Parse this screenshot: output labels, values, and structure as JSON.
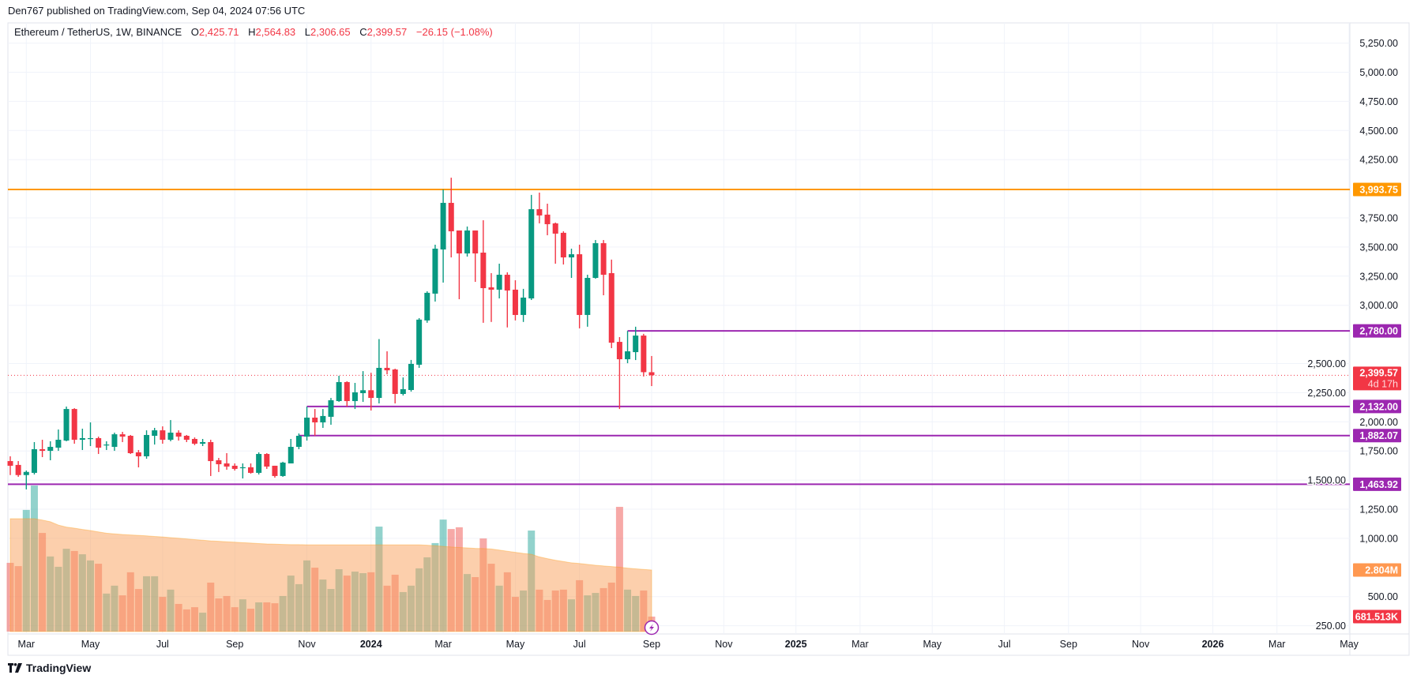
{
  "header": {
    "published": "Den767 published on TradingView.com, Sep 04, 2024 07:56 UTC"
  },
  "legend": {
    "symbol": "Ethereum / TetherUS, 1W, BINANCE",
    "o_label": "O",
    "o": "2,425.71",
    "h_label": "H",
    "h": "2,564.83",
    "l_label": "L",
    "l": "2,306.65",
    "c_label": "C",
    "c": "2,399.57",
    "change": "−26.15 (−1.08%)"
  },
  "colors": {
    "up": "#089981",
    "down": "#f23645",
    "orange": "#ff9800",
    "purple": "#9c27b0",
    "grid": "#f0f3fa"
  },
  "price_axis": {
    "ticks": [
      {
        "value": 5250,
        "label": "5,250.00"
      },
      {
        "value": 5000,
        "label": "5,000.00"
      },
      {
        "value": 4750,
        "label": "4,750.00"
      },
      {
        "value": 4500,
        "label": "4,500.00"
      },
      {
        "value": 4250,
        "label": "4,250.00"
      },
      {
        "value": 3750,
        "label": "3,750.00"
      },
      {
        "value": 3500,
        "label": "3,500.00"
      },
      {
        "value": 3250,
        "label": "3,250.00"
      },
      {
        "value": 3000,
        "label": "3,000.00"
      },
      {
        "value": 2500,
        "label": "2,500.00"
      },
      {
        "value": 2250,
        "label": "2,250.00"
      },
      {
        "value": 2000,
        "label": "2,000.00"
      },
      {
        "value": 1750,
        "label": "1,750.00"
      },
      {
        "value": 1500,
        "label": "1,500.00"
      },
      {
        "value": 1250,
        "label": "1,250.00"
      },
      {
        "value": 1000,
        "label": "1,000.00"
      },
      {
        "value": 500,
        "label": "500.00"
      },
      {
        "value": 250,
        "label": "250.00"
      }
    ]
  },
  "horizontal_lines": [
    {
      "price": 3993.75,
      "label": "3,993.75",
      "color": "#ff9800",
      "from": "start"
    },
    {
      "price": 2780.0,
      "label": "2,780.00",
      "color": "#9c27b0",
      "from": "2024-08-12"
    },
    {
      "price": 2132.0,
      "label": "2,132.00",
      "color": "#9c27b0",
      "from": "2023-11-06"
    },
    {
      "price": 1882.07,
      "label": "1,882.07",
      "color": "#9c27b0",
      "from": "2023-10-30"
    },
    {
      "price": 1463.92,
      "label": "1,463.92",
      "color": "#9c27b0",
      "from": "start"
    }
  ],
  "current_price": {
    "price": 2399.57,
    "label": "2,399.57",
    "countdown": "4d 17h",
    "color": "#f23645"
  },
  "volume": {
    "ma_label": "2.804M",
    "ma_value": 2.804,
    "last_label": "681.513K",
    "last_value": 0.681513
  },
  "time_axis": {
    "labels": [
      {
        "text": "Mar",
        "month": "2023-03"
      },
      {
        "text": "May",
        "month": "2023-05"
      },
      {
        "text": "Jul",
        "month": "2023-07"
      },
      {
        "text": "Sep",
        "month": "2023-09"
      },
      {
        "text": "Nov",
        "month": "2023-11"
      },
      {
        "text": "2024",
        "month": "2024-01"
      },
      {
        "text": "Mar",
        "month": "2024-03"
      },
      {
        "text": "May",
        "month": "2024-05"
      },
      {
        "text": "Jul",
        "month": "2024-07"
      },
      {
        "text": "Sep",
        "month": "2024-09"
      },
      {
        "text": "Nov",
        "month": "2024-11"
      },
      {
        "text": "2025",
        "month": "2025-01"
      },
      {
        "text": "Mar",
        "month": "2025-03"
      },
      {
        "text": "May",
        "month": "2025-05"
      },
      {
        "text": "Jul",
        "month": "2025-07"
      },
      {
        "text": "Sep",
        "month": "2025-09"
      },
      {
        "text": "Nov",
        "month": "2025-11"
      },
      {
        "text": "2026",
        "month": "2026-01"
      },
      {
        "text": "Mar",
        "month": "2026-03"
      },
      {
        "text": "May",
        "month": "2026-05"
      }
    ]
  },
  "footer": {
    "logo": "TradingView"
  },
  "chart_data": {
    "type": "candlestick",
    "interval": "1W",
    "y_scale": "linear",
    "ylim": [
      250,
      5250
    ],
    "grid": true,
    "volume_unit": "M",
    "candles": [
      {
        "d": "2023-02-20",
        "o": 1663,
        "h": 1704,
        "l": 1543,
        "c": 1623,
        "v": 3.13
      },
      {
        "d": "2023-02-27",
        "o": 1630,
        "h": 1663,
        "l": 1528,
        "c": 1543,
        "v": 2.98
      },
      {
        "d": "2023-03-06",
        "o": 1543,
        "h": 1582,
        "l": 1420,
        "c": 1570,
        "v": 5.54
      },
      {
        "d": "2023-03-13",
        "o": 1562,
        "h": 1826,
        "l": 1548,
        "c": 1765,
        "v": 6.65
      },
      {
        "d": "2023-03-20",
        "o": 1765,
        "h": 1846,
        "l": 1697,
        "c": 1751,
        "v": 4.49
      },
      {
        "d": "2023-03-27",
        "o": 1751,
        "h": 1833,
        "l": 1670,
        "c": 1785,
        "v": 3.42
      },
      {
        "d": "2023-04-03",
        "o": 1778,
        "h": 1934,
        "l": 1751,
        "c": 1846,
        "v": 2.95
      },
      {
        "d": "2023-04-10",
        "o": 1839,
        "h": 2131,
        "l": 1833,
        "c": 2110,
        "v": 3.77
      },
      {
        "d": "2023-04-17",
        "o": 2110,
        "h": 2117,
        "l": 1812,
        "c": 1846,
        "v": 3.67
      },
      {
        "d": "2023-04-24",
        "o": 1846,
        "h": 1941,
        "l": 1758,
        "c": 1860,
        "v": 3.52
      },
      {
        "d": "2023-05-01",
        "o": 1853,
        "h": 1995,
        "l": 1792,
        "c": 1860,
        "v": 3.24
      },
      {
        "d": "2023-05-08",
        "o": 1860,
        "h": 1873,
        "l": 1724,
        "c": 1778,
        "v": 3.09
      },
      {
        "d": "2023-05-15",
        "o": 1800,
        "h": 1833,
        "l": 1758,
        "c": 1805,
        "v": 1.73
      },
      {
        "d": "2023-05-22",
        "o": 1785,
        "h": 1907,
        "l": 1751,
        "c": 1893,
        "v": 2.09
      },
      {
        "d": "2023-05-29",
        "o": 1893,
        "h": 1914,
        "l": 1826,
        "c": 1873,
        "v": 1.65
      },
      {
        "d": "2023-06-05",
        "o": 1880,
        "h": 1887,
        "l": 1724,
        "c": 1731,
        "v": 2.7
      },
      {
        "d": "2023-06-12",
        "o": 1738,
        "h": 1758,
        "l": 1609,
        "c": 1704,
        "v": 1.94
      },
      {
        "d": "2023-06-19",
        "o": 1704,
        "h": 1927,
        "l": 1683,
        "c": 1887,
        "v": 2.52
      },
      {
        "d": "2023-06-26",
        "o": 1880,
        "h": 1948,
        "l": 1805,
        "c": 1927,
        "v": 2.52
      },
      {
        "d": "2023-07-03",
        "o": 1927,
        "h": 1961,
        "l": 1812,
        "c": 1846,
        "v": 1.58
      },
      {
        "d": "2023-07-10",
        "o": 1846,
        "h": 2015,
        "l": 1833,
        "c": 1907,
        "v": 1.91
      },
      {
        "d": "2023-07-17",
        "o": 1907,
        "h": 1927,
        "l": 1839,
        "c": 1873,
        "v": 1.26
      },
      {
        "d": "2023-07-24",
        "o": 1880,
        "h": 1887,
        "l": 1826,
        "c": 1846,
        "v": 1.01
      },
      {
        "d": "2023-07-31",
        "o": 1853,
        "h": 1866,
        "l": 1800,
        "c": 1812,
        "v": 1.11
      },
      {
        "d": "2023-08-07",
        "o": 1812,
        "h": 1853,
        "l": 1792,
        "c": 1826,
        "v": 0.86
      },
      {
        "d": "2023-08-14",
        "o": 1826,
        "h": 1846,
        "l": 1535,
        "c": 1663,
        "v": 2.23
      },
      {
        "d": "2023-08-21",
        "o": 1670,
        "h": 1690,
        "l": 1569,
        "c": 1636,
        "v": 1.51
      },
      {
        "d": "2023-08-28",
        "o": 1643,
        "h": 1731,
        "l": 1589,
        "c": 1616,
        "v": 1.62
      },
      {
        "d": "2023-09-04",
        "o": 1623,
        "h": 1643,
        "l": 1582,
        "c": 1596,
        "v": 1.11
      },
      {
        "d": "2023-09-11",
        "o": 1603,
        "h": 1643,
        "l": 1514,
        "c": 1610,
        "v": 1.47
      },
      {
        "d": "2023-09-18",
        "o": 1610,
        "h": 1643,
        "l": 1555,
        "c": 1562,
        "v": 1.04
      },
      {
        "d": "2023-09-25",
        "o": 1562,
        "h": 1738,
        "l": 1548,
        "c": 1724,
        "v": 1.33
      },
      {
        "d": "2023-10-02",
        "o": 1724,
        "h": 1731,
        "l": 1596,
        "c": 1616,
        "v": 1.33
      },
      {
        "d": "2023-10-09",
        "o": 1623,
        "h": 1623,
        "l": 1521,
        "c": 1535,
        "v": 1.29
      },
      {
        "d": "2023-10-16",
        "o": 1535,
        "h": 1657,
        "l": 1528,
        "c": 1650,
        "v": 1.62
      },
      {
        "d": "2023-10-23",
        "o": 1643,
        "h": 1853,
        "l": 1643,
        "c": 1785,
        "v": 2.55
      },
      {
        "d": "2023-10-30",
        "o": 1785,
        "h": 1900,
        "l": 1765,
        "c": 1880,
        "v": 2.16
      },
      {
        "d": "2023-11-06",
        "o": 1873,
        "h": 2131,
        "l": 1839,
        "c": 2036,
        "v": 3.24
      },
      {
        "d": "2023-11-13",
        "o": 2036,
        "h": 2110,
        "l": 1880,
        "c": 1995,
        "v": 2.91
      },
      {
        "d": "2023-11-20",
        "o": 1995,
        "h": 2110,
        "l": 1948,
        "c": 2050,
        "v": 2.37
      },
      {
        "d": "2023-11-27",
        "o": 2043,
        "h": 2205,
        "l": 1975,
        "c": 2185,
        "v": 1.94
      },
      {
        "d": "2023-12-04",
        "o": 2178,
        "h": 2395,
        "l": 2171,
        "c": 2341,
        "v": 2.84
      },
      {
        "d": "2023-12-11",
        "o": 2341,
        "h": 2348,
        "l": 2131,
        "c": 2178,
        "v": 2.55
      },
      {
        "d": "2023-12-18",
        "o": 2178,
        "h": 2334,
        "l": 2110,
        "c": 2253,
        "v": 2.73
      },
      {
        "d": "2023-12-25",
        "o": 2246,
        "h": 2435,
        "l": 2171,
        "c": 2271,
        "v": 2.66
      },
      {
        "d": "2024-01-01",
        "o": 2271,
        "h": 2421,
        "l": 2097,
        "c": 2205,
        "v": 2.7
      },
      {
        "d": "2024-01-08",
        "o": 2205,
        "h": 2710,
        "l": 2158,
        "c": 2463,
        "v": 4.78
      },
      {
        "d": "2024-01-15",
        "o": 2463,
        "h": 2605,
        "l": 2408,
        "c": 2442,
        "v": 2.09
      },
      {
        "d": "2024-01-22",
        "o": 2449,
        "h": 2456,
        "l": 2158,
        "c": 2239,
        "v": 2.59
      },
      {
        "d": "2024-01-29",
        "o": 2239,
        "h": 2381,
        "l": 2226,
        "c": 2280,
        "v": 1.8
      },
      {
        "d": "2024-02-05",
        "o": 2273,
        "h": 2531,
        "l": 2259,
        "c": 2497,
        "v": 2.09
      },
      {
        "d": "2024-02-12",
        "o": 2490,
        "h": 2890,
        "l": 2463,
        "c": 2877,
        "v": 2.88
      },
      {
        "d": "2024-02-19",
        "o": 2870,
        "h": 3120,
        "l": 2850,
        "c": 3107,
        "v": 3.38
      },
      {
        "d": "2024-02-26",
        "o": 3100,
        "h": 3520,
        "l": 3032,
        "c": 3486,
        "v": 4.03
      },
      {
        "d": "2024-03-04",
        "o": 3479,
        "h": 3994,
        "l": 3195,
        "c": 3879,
        "v": 5.1
      },
      {
        "d": "2024-03-11",
        "o": 3879,
        "h": 4095,
        "l": 3411,
        "c": 3635,
        "v": 4.67
      },
      {
        "d": "2024-03-18",
        "o": 3642,
        "h": 3642,
        "l": 3052,
        "c": 3445,
        "v": 4.75
      },
      {
        "d": "2024-03-25",
        "o": 3445,
        "h": 3676,
        "l": 3418,
        "c": 3642,
        "v": 2.62
      },
      {
        "d": "2024-04-01",
        "o": 3642,
        "h": 3642,
        "l": 3201,
        "c": 3445,
        "v": 2.48
      },
      {
        "d": "2024-04-08",
        "o": 3452,
        "h": 3730,
        "l": 2850,
        "c": 3147,
        "v": 4.24
      },
      {
        "d": "2024-04-15",
        "o": 3154,
        "h": 3276,
        "l": 2857,
        "c": 3134,
        "v": 3.09
      },
      {
        "d": "2024-04-22",
        "o": 3134,
        "h": 3357,
        "l": 3059,
        "c": 3262,
        "v": 2.09
      },
      {
        "d": "2024-04-29",
        "o": 3262,
        "h": 3283,
        "l": 2810,
        "c": 3127,
        "v": 2.7
      },
      {
        "d": "2024-05-06",
        "o": 3134,
        "h": 3215,
        "l": 2870,
        "c": 2917,
        "v": 1.58
      },
      {
        "d": "2024-05-13",
        "o": 2917,
        "h": 3141,
        "l": 2857,
        "c": 3066,
        "v": 1.87
      },
      {
        "d": "2024-05-20",
        "o": 3059,
        "h": 3947,
        "l": 3045,
        "c": 3825,
        "v": 4.6
      },
      {
        "d": "2024-05-27",
        "o": 3825,
        "h": 3967,
        "l": 3703,
        "c": 3771,
        "v": 1.91
      },
      {
        "d": "2024-06-03",
        "o": 3778,
        "h": 3872,
        "l": 3601,
        "c": 3696,
        "v": 1.44
      },
      {
        "d": "2024-06-10",
        "o": 3703,
        "h": 3710,
        "l": 3357,
        "c": 3615,
        "v": 1.87
      },
      {
        "d": "2024-06-17",
        "o": 3622,
        "h": 3635,
        "l": 3350,
        "c": 3411,
        "v": 1.91
      },
      {
        "d": "2024-06-24",
        "o": 3411,
        "h": 3486,
        "l": 3235,
        "c": 3438,
        "v": 1.47
      },
      {
        "d": "2024-07-01",
        "o": 3438,
        "h": 3520,
        "l": 2802,
        "c": 2917,
        "v": 2.34
      },
      {
        "d": "2024-07-08",
        "o": 2917,
        "h": 3262,
        "l": 2816,
        "c": 3235,
        "v": 1.65
      },
      {
        "d": "2024-07-15",
        "o": 3235,
        "h": 3560,
        "l": 3228,
        "c": 3533,
        "v": 1.76
      },
      {
        "d": "2024-07-22",
        "o": 3533,
        "h": 3560,
        "l": 3086,
        "c": 3262,
        "v": 1.98
      },
      {
        "d": "2024-07-29",
        "o": 3276,
        "h": 3392,
        "l": 2632,
        "c": 2679,
        "v": 2.23
      },
      {
        "d": "2024-08-05",
        "o": 2686,
        "h": 2727,
        "l": 2110,
        "c": 2537,
        "v": 5.68
      },
      {
        "d": "2024-08-12",
        "o": 2537,
        "h": 2780,
        "l": 2503,
        "c": 2605,
        "v": 1.91
      },
      {
        "d": "2024-08-19",
        "o": 2598,
        "h": 2816,
        "l": 2530,
        "c": 2740,
        "v": 1.62
      },
      {
        "d": "2024-08-26",
        "o": 2740,
        "h": 2755,
        "l": 2389,
        "c": 2426,
        "v": 1.87
      },
      {
        "d": "2024-09-02",
        "o": 2425.71,
        "h": 2564.83,
        "l": 2306.65,
        "c": 2399.57,
        "v": 0.681513
      }
    ],
    "volume_ma": [
      5.14,
      5.14,
      5.14,
      5.14,
      5.08,
      5.0,
      4.85,
      4.76,
      4.71,
      4.65,
      4.6,
      4.54,
      4.48,
      4.45,
      4.42,
      4.4,
      4.38,
      4.36,
      4.33,
      4.31,
      4.28,
      4.25,
      4.22,
      4.19,
      4.16,
      4.13,
      4.11,
      4.09,
      4.07,
      4.05,
      4.03,
      4.01,
      3.99,
      3.98,
      3.97,
      3.96,
      3.96,
      3.95,
      3.95,
      3.95,
      3.95,
      3.95,
      3.95,
      3.95,
      3.95,
      3.95,
      3.95,
      3.95,
      3.95,
      3.95,
      3.95,
      3.95,
      3.93,
      3.91,
      3.88,
      3.85,
      3.83,
      3.81,
      3.79,
      3.78,
      3.76,
      3.71,
      3.66,
      3.61,
      3.56,
      3.52,
      3.4,
      3.32,
      3.25,
      3.19,
      3.13,
      3.1,
      3.06,
      3.02,
      2.99,
      2.96,
      2.93,
      2.89,
      2.86,
      2.83,
      2.804
    ]
  }
}
